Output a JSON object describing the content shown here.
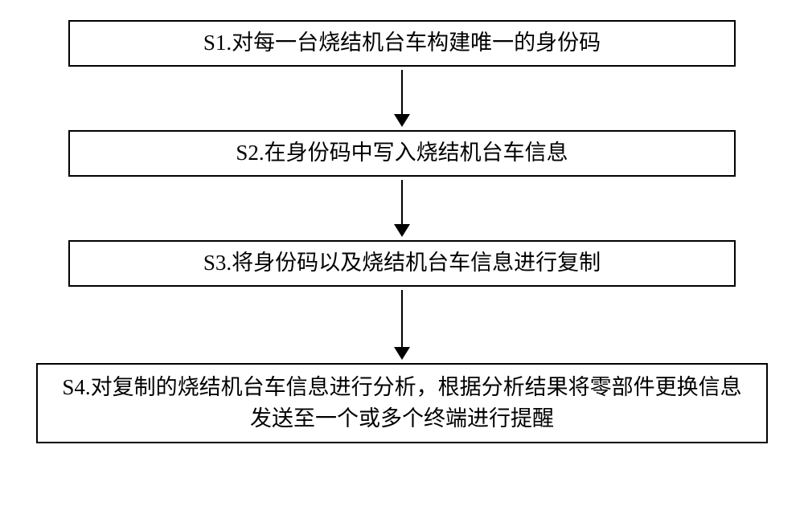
{
  "diagram": {
    "type": "flowchart",
    "background_color": "#ffffff",
    "border_color": "#000000",
    "text_color": "#000000",
    "font_size_pt": 20,
    "box_width_single": 830,
    "box_height_single": 58,
    "box_width_multi": 910,
    "box_height_multi": 100,
    "arrow_shaft_heights": [
      56,
      56,
      72
    ],
    "nodes": [
      {
        "id": "s1",
        "label": "S1.对每一台烧结机台车构建唯一的身份码",
        "multiline": false
      },
      {
        "id": "s2",
        "label": "S2.在身份码中写入烧结机台车信息",
        "multiline": false
      },
      {
        "id": "s3",
        "label": "S3.将身份码以及烧结机台车信息进行复制",
        "multiline": false
      },
      {
        "id": "s4",
        "label": "S4.对复制的烧结机台车信息进行分析，根据分析结果将零部件更换信息发送至一个或多个终端进行提醒",
        "multiline": true
      }
    ],
    "edges": [
      {
        "from": "s1",
        "to": "s2"
      },
      {
        "from": "s2",
        "to": "s3"
      },
      {
        "from": "s3",
        "to": "s4"
      }
    ]
  }
}
